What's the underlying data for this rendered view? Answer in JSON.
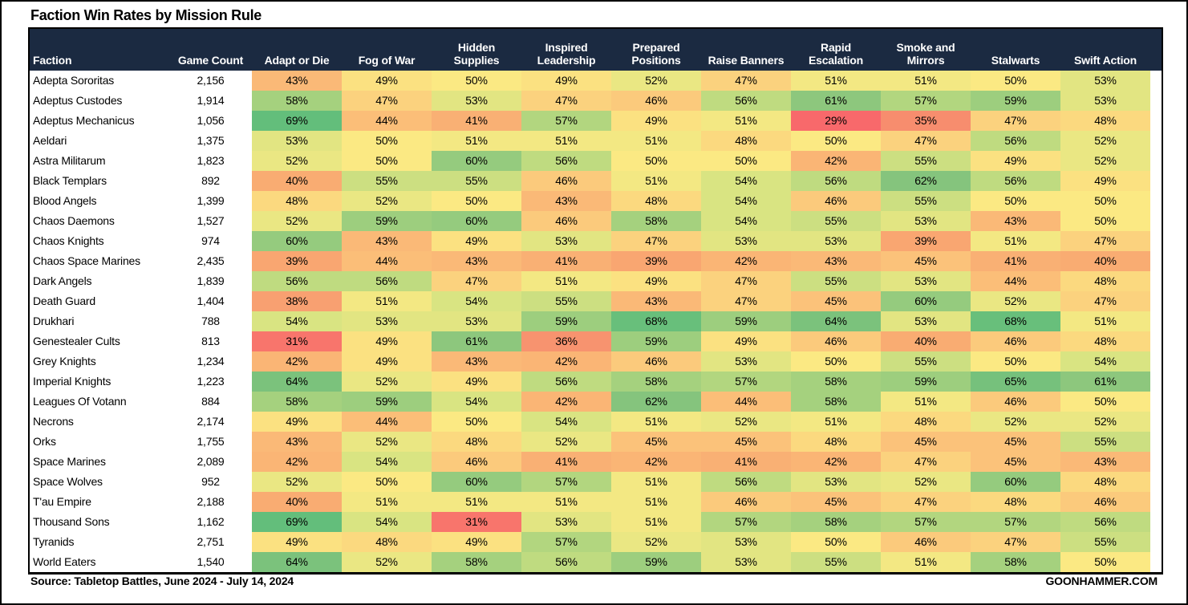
{
  "labels": {
    "faction_header": "Faction",
    "count_header": "Game Count",
    "source": "Source: Tabletop Battles, June 2024 - July 14, 2024",
    "brand": "GOONHAMMER.COM"
  },
  "colors": {
    "header_bg": "#1B2A41",
    "header_text": "#FFFFFF",
    "body_text": "#000000",
    "frame": "#000000",
    "background": "#FFFFFF"
  },
  "chart_data": {
    "type": "heatmap",
    "title": "Faction Win Rates by Mission Rule",
    "value_format": "percent",
    "legend": "none",
    "grid": "off",
    "columns": [
      "Adapt or Die",
      "Fog of War",
      "Hidden\nSupplies",
      "Inspired\nLeadership",
      "Prepared\nPositions",
      "Raise Banners",
      "Rapid\nEscalation",
      "Smoke and\nMirrors",
      "Stalwarts",
      "Swift Action"
    ],
    "rows": [
      {
        "faction": "Adepta Sororitas",
        "game_count": "2,156",
        "win_rates_pct": [
          43,
          49,
          50,
          49,
          52,
          47,
          51,
          51,
          50,
          53
        ]
      },
      {
        "faction": "Adeptus Custodes",
        "game_count": "1,914",
        "win_rates_pct": [
          58,
          47,
          53,
          47,
          46,
          56,
          61,
          57,
          59,
          53
        ]
      },
      {
        "faction": "Adeptus Mechanicus",
        "game_count": "1,056",
        "win_rates_pct": [
          69,
          44,
          41,
          57,
          49,
          51,
          29,
          35,
          47,
          48
        ]
      },
      {
        "faction": "Aeldari",
        "game_count": "1,375",
        "win_rates_pct": [
          53,
          50,
          51,
          51,
          51,
          48,
          50,
          47,
          56,
          52
        ]
      },
      {
        "faction": "Astra Militarum",
        "game_count": "1,823",
        "win_rates_pct": [
          52,
          50,
          60,
          56,
          50,
          50,
          42,
          55,
          49,
          52
        ]
      },
      {
        "faction": "Black Templars",
        "game_count": "892",
        "win_rates_pct": [
          40,
          55,
          55,
          46,
          51,
          54,
          56,
          62,
          56,
          49
        ]
      },
      {
        "faction": "Blood Angels",
        "game_count": "1,399",
        "win_rates_pct": [
          48,
          52,
          50,
          43,
          48,
          54,
          46,
          55,
          50,
          50
        ]
      },
      {
        "faction": "Chaos Daemons",
        "game_count": "1,527",
        "win_rates_pct": [
          52,
          59,
          60,
          46,
          58,
          54,
          55,
          53,
          43,
          50
        ]
      },
      {
        "faction": "Chaos Knights",
        "game_count": "974",
        "win_rates_pct": [
          60,
          43,
          49,
          53,
          47,
          53,
          53,
          39,
          51,
          47
        ]
      },
      {
        "faction": "Chaos Space Marines",
        "game_count": "2,435",
        "win_rates_pct": [
          39,
          44,
          43,
          41,
          39,
          42,
          43,
          45,
          41,
          40
        ]
      },
      {
        "faction": "Dark Angels",
        "game_count": "1,839",
        "win_rates_pct": [
          56,
          56,
          47,
          51,
          49,
          47,
          55,
          53,
          44,
          48
        ]
      },
      {
        "faction": "Death Guard",
        "game_count": "1,404",
        "win_rates_pct": [
          38,
          51,
          54,
          55,
          43,
          47,
          45,
          60,
          52,
          47
        ]
      },
      {
        "faction": "Drukhari",
        "game_count": "788",
        "win_rates_pct": [
          54,
          53,
          53,
          59,
          68,
          59,
          64,
          53,
          68,
          51
        ]
      },
      {
        "faction": "Genestealer Cults",
        "game_count": "813",
        "win_rates_pct": [
          31,
          49,
          61,
          36,
          59,
          49,
          46,
          40,
          46,
          48
        ]
      },
      {
        "faction": "Grey Knights",
        "game_count": "1,234",
        "win_rates_pct": [
          42,
          49,
          43,
          42,
          46,
          53,
          50,
          55,
          50,
          54
        ]
      },
      {
        "faction": "Imperial Knights",
        "game_count": "1,223",
        "win_rates_pct": [
          64,
          52,
          49,
          56,
          58,
          57,
          58,
          59,
          65,
          61
        ]
      },
      {
        "faction": "Leagues Of Votann",
        "game_count": "884",
        "win_rates_pct": [
          58,
          59,
          54,
          42,
          62,
          44,
          58,
          51,
          46,
          50
        ]
      },
      {
        "faction": "Necrons",
        "game_count": "2,174",
        "win_rates_pct": [
          49,
          44,
          50,
          54,
          51,
          52,
          51,
          48,
          52,
          52
        ]
      },
      {
        "faction": "Orks",
        "game_count": "1,755",
        "win_rates_pct": [
          43,
          52,
          48,
          52,
          45,
          45,
          48,
          45,
          45,
          55
        ]
      },
      {
        "faction": "Space Marines",
        "game_count": "2,089",
        "win_rates_pct": [
          42,
          54,
          46,
          41,
          42,
          41,
          42,
          47,
          45,
          43
        ]
      },
      {
        "faction": "Space Wolves",
        "game_count": "952",
        "win_rates_pct": [
          52,
          50,
          60,
          57,
          51,
          56,
          53,
          52,
          60,
          48
        ]
      },
      {
        "faction": "T'au Empire",
        "game_count": "2,188",
        "win_rates_pct": [
          40,
          51,
          51,
          51,
          51,
          46,
          45,
          47,
          48,
          46
        ]
      },
      {
        "faction": "Thousand Sons",
        "game_count": "1,162",
        "win_rates_pct": [
          69,
          54,
          31,
          53,
          51,
          57,
          58,
          57,
          57,
          56
        ]
      },
      {
        "faction": "Tyranids",
        "game_count": "2,751",
        "win_rates_pct": [
          49,
          48,
          49,
          57,
          52,
          53,
          50,
          46,
          47,
          55
        ]
      },
      {
        "faction": "World Eaters",
        "game_count": "1,540",
        "win_rates_pct": [
          64,
          52,
          58,
          56,
          59,
          53,
          55,
          51,
          58,
          50
        ]
      }
    ],
    "color_scale": {
      "description": "red-yellow-green heatmap, low=red high=green",
      "stops": [
        {
          "value": 29,
          "color": "#F8696B"
        },
        {
          "value": 36,
          "color": "#F7936F"
        },
        {
          "value": 40,
          "color": "#F9AC72"
        },
        {
          "value": 45,
          "color": "#FBC27A"
        },
        {
          "value": 50,
          "color": "#FBE983"
        },
        {
          "value": 54,
          "color": "#D9E482"
        },
        {
          "value": 58,
          "color": "#A5D17E"
        },
        {
          "value": 62,
          "color": "#85C47D"
        },
        {
          "value": 69,
          "color": "#63BE7B"
        }
      ]
    }
  }
}
